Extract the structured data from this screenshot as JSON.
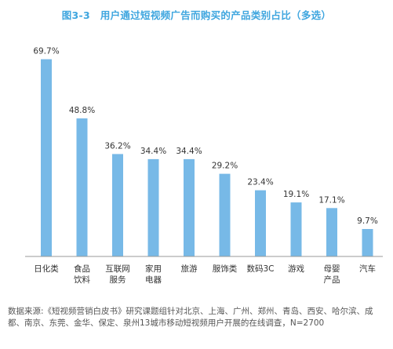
{
  "chart_data": {
    "type": "bar",
    "title": "图3-3　用户通过短视频广告而购买的产品类别占比（多选）",
    "categories": [
      "日化类",
      "食品\n饮料",
      "互联网\n服务",
      "家用\n电器",
      "旅游",
      "服饰类",
      "数码3C",
      "游戏",
      "母婴\n产品",
      "汽车"
    ],
    "values": [
      69.7,
      48.8,
      36.2,
      34.4,
      34.4,
      29.2,
      23.4,
      19.1,
      17.1,
      9.7
    ],
    "value_labels": [
      "69.7%",
      "48.8%",
      "36.2%",
      "34.4%",
      "34.4%",
      "29.2%",
      "23.4%",
      "19.1%",
      "17.1%",
      "9.7%"
    ],
    "ylim": [
      0,
      74
    ],
    "grid": false,
    "legend": "none",
    "bar_color": "#77b9e7",
    "axis_color": "#9a9a9a"
  },
  "source_text": "数据来源:《短视频营销白皮书》研究课题组针对北京、上海、广州、郑州、青岛、西安、哈尔滨、成都、南京、东莞、金华、保定、泉州13城市移动短视频用户开展的在线调查，N=2700"
}
